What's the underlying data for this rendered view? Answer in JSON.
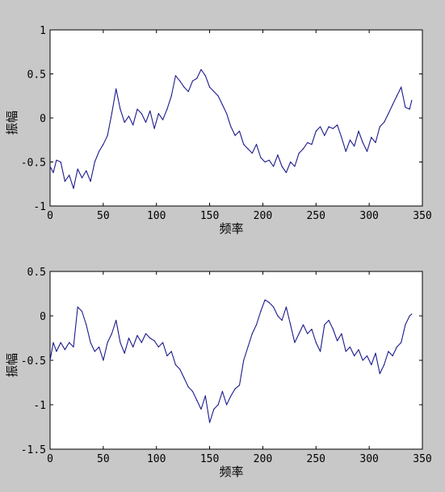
{
  "chart_data": [
    {
      "type": "line",
      "xlabel": "频率",
      "ylabel": "振幅",
      "xlim": [
        0,
        350
      ],
      "ylim": [
        -1,
        1
      ],
      "xticks": [
        0,
        50,
        100,
        150,
        200,
        250,
        300,
        350
      ],
      "yticks": [
        -1,
        -0.5,
        0,
        0.5,
        1
      ],
      "ytick_labels": [
        "-1",
        "-0.5",
        "0",
        "0.5",
        "1"
      ],
      "grid": false,
      "line_color": "#1a1a8c",
      "series": [
        {
          "x": [
            0,
            3,
            6,
            10,
            14,
            18,
            22,
            26,
            30,
            34,
            38,
            42,
            46,
            50,
            54,
            58,
            62,
            66,
            70,
            74,
            78,
            82,
            86,
            90,
            94,
            98,
            102,
            106,
            110,
            114,
            118,
            122,
            126,
            130,
            134,
            138,
            142,
            146,
            150,
            154,
            158,
            162,
            166,
            170,
            174,
            178,
            182,
            186,
            190,
            194,
            198,
            202,
            206,
            210,
            214,
            218,
            222,
            226,
            230,
            234,
            238,
            242,
            246,
            250,
            254,
            258,
            262,
            266,
            270,
            274,
            278,
            282,
            286,
            290,
            294,
            298,
            302,
            306,
            310,
            314,
            318,
            322,
            326,
            330,
            334,
            338,
            340
          ],
          "values": [
            -0.55,
            -0.62,
            -0.48,
            -0.5,
            -0.72,
            -0.65,
            -0.8,
            -0.58,
            -0.68,
            -0.6,
            -0.72,
            -0.5,
            -0.38,
            -0.3,
            -0.2,
            0.05,
            0.33,
            0.1,
            -0.05,
            0.02,
            -0.08,
            0.1,
            0.05,
            -0.05,
            0.08,
            -0.12,
            0.05,
            -0.02,
            0.1,
            0.25,
            0.48,
            0.42,
            0.35,
            0.3,
            0.42,
            0.45,
            0.55,
            0.48,
            0.35,
            0.3,
            0.25,
            0.15,
            0.05,
            -0.1,
            -0.2,
            -0.15,
            -0.3,
            -0.35,
            -0.4,
            -0.3,
            -0.45,
            -0.5,
            -0.48,
            -0.55,
            -0.42,
            -0.55,
            -0.62,
            -0.5,
            -0.55,
            -0.4,
            -0.35,
            -0.28,
            -0.3,
            -0.15,
            -0.1,
            -0.2,
            -0.1,
            -0.12,
            -0.08,
            -0.22,
            -0.38,
            -0.25,
            -0.32,
            -0.15,
            -0.28,
            -0.38,
            -0.22,
            -0.28,
            -0.1,
            -0.05,
            0.05,
            0.15,
            0.25,
            0.35,
            0.12,
            0.1,
            0.2
          ]
        }
      ]
    },
    {
      "type": "line",
      "xlabel": "频率",
      "ylabel": "振幅",
      "xlim": [
        0,
        350
      ],
      "ylim": [
        -1.5,
        0.5
      ],
      "xticks": [
        0,
        50,
        100,
        150,
        200,
        250,
        300,
        350
      ],
      "yticks": [
        -1.5,
        -1,
        -0.5,
        0,
        0.5
      ],
      "ytick_labels": [
        "-1.5",
        "-1",
        "-0.5",
        "0",
        "0.5"
      ],
      "grid": false,
      "line_color": "#1a1a8c",
      "series": [
        {
          "x": [
            0,
            3,
            6,
            10,
            14,
            18,
            22,
            26,
            30,
            34,
            38,
            42,
            46,
            50,
            54,
            58,
            62,
            66,
            70,
            74,
            78,
            82,
            86,
            90,
            94,
            98,
            102,
            106,
            110,
            114,
            118,
            122,
            126,
            130,
            134,
            138,
            142,
            146,
            150,
            154,
            158,
            162,
            166,
            170,
            174,
            178,
            182,
            186,
            190,
            194,
            198,
            202,
            206,
            210,
            214,
            218,
            222,
            226,
            230,
            234,
            238,
            242,
            246,
            250,
            254,
            258,
            262,
            266,
            270,
            274,
            278,
            282,
            286,
            290,
            294,
            298,
            302,
            306,
            310,
            314,
            318,
            322,
            326,
            330,
            334,
            338,
            340
          ],
          "values": [
            -0.5,
            -0.3,
            -0.4,
            -0.3,
            -0.38,
            -0.3,
            -0.35,
            0.1,
            0.05,
            -0.1,
            -0.3,
            -0.4,
            -0.35,
            -0.5,
            -0.3,
            -0.2,
            -0.05,
            -0.3,
            -0.42,
            -0.25,
            -0.35,
            -0.22,
            -0.3,
            -0.2,
            -0.25,
            -0.28,
            -0.35,
            -0.3,
            -0.45,
            -0.4,
            -0.55,
            -0.6,
            -0.7,
            -0.8,
            -0.85,
            -0.95,
            -1.05,
            -0.9,
            -1.2,
            -1.05,
            -1.0,
            -0.85,
            -1.0,
            -0.9,
            -0.82,
            -0.78,
            -0.5,
            -0.35,
            -0.2,
            -0.1,
            0.05,
            0.18,
            0.15,
            0.1,
            0.0,
            -0.05,
            0.1,
            -0.1,
            -0.3,
            -0.2,
            -0.1,
            -0.2,
            -0.15,
            -0.3,
            -0.4,
            -0.1,
            -0.05,
            -0.15,
            -0.28,
            -0.2,
            -0.4,
            -0.35,
            -0.45,
            -0.38,
            -0.5,
            -0.45,
            -0.55,
            -0.42,
            -0.65,
            -0.55,
            -0.4,
            -0.45,
            -0.35,
            -0.3,
            -0.1,
            0.0,
            0.02
          ]
        }
      ]
    }
  ]
}
